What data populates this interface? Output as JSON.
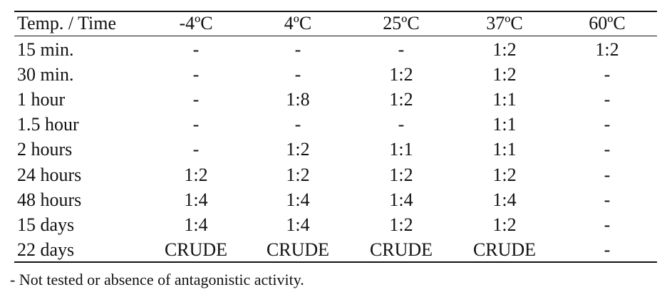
{
  "table": {
    "header": [
      "Temp. / Time",
      "-4ºC",
      "4ºC",
      "25ºC",
      "37ºC",
      "60ºC"
    ],
    "rows": [
      [
        "15 min.",
        "-",
        "-",
        "-",
        "1:2",
        "1:2"
      ],
      [
        "30 min.",
        "-",
        "-",
        "1:2",
        "1:2",
        "-"
      ],
      [
        "1 hour",
        "-",
        "1:8",
        "1:2",
        "1:1",
        "-"
      ],
      [
        "1.5 hour",
        "-",
        "-",
        "-",
        "1:1",
        "-"
      ],
      [
        "2 hours",
        "-",
        "1:2",
        "1:1",
        "1:1",
        "-"
      ],
      [
        "24 hours",
        "1:2",
        "1:2",
        "1:2",
        "1:2",
        "-"
      ],
      [
        "48 hours",
        "1:4",
        "1:4",
        "1:4",
        "1:4",
        "-"
      ],
      [
        "15 days",
        "1:4",
        "1:4",
        "1:2",
        "1:2",
        "-"
      ],
      [
        "22 days",
        "CRUDE",
        "CRUDE",
        "CRUDE",
        "CRUDE",
        "-"
      ]
    ],
    "footnote": "- Not tested or absence of antagonistic activity."
  }
}
